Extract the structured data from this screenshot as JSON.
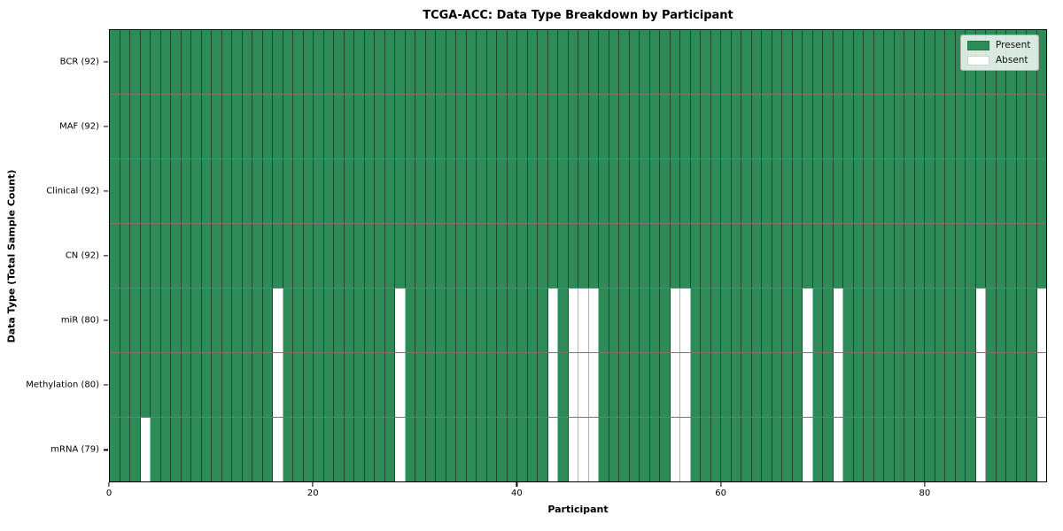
{
  "title": "TCGA-ACC: Data Type Breakdown by Participant",
  "xlabel": "Participant",
  "ylabel": "Data Type (Total Sample Count)",
  "legend": {
    "present_label": "Present",
    "absent_label": "Absent"
  },
  "colors": {
    "present": "#2e8b57",
    "absent": "#ffffff"
  },
  "chart_data": {
    "type": "heatmap",
    "title": "TCGA-ACC: Data Type Breakdown by Participant",
    "xlabel": "Participant",
    "ylabel": "Data Type (Total Sample Count)",
    "legend_entries": [
      "Present",
      "Absent"
    ],
    "legend_position": "upper right",
    "grid": true,
    "n_participants": 92,
    "x_range": [
      0,
      92
    ],
    "x_ticks": [
      0,
      20,
      40,
      60,
      80
    ],
    "value_legend": {
      "1": "Present",
      "0": "Absent"
    },
    "rows": [
      {
        "label": "BCR (92)",
        "name": "BCR",
        "present_count": 92,
        "absent_indices": []
      },
      {
        "label": "MAF (92)",
        "name": "MAF",
        "present_count": 92,
        "absent_indices": []
      },
      {
        "label": "Clinical (92)",
        "name": "Clinical",
        "present_count": 92,
        "absent_indices": []
      },
      {
        "label": "CN (92)",
        "name": "CN",
        "present_count": 92,
        "absent_indices": []
      },
      {
        "label": "miR (80)",
        "name": "miR",
        "present_count": 80,
        "absent_indices": [
          16,
          28,
          43,
          45,
          46,
          47,
          55,
          56,
          68,
          71,
          85,
          91
        ]
      },
      {
        "label": "Methylation (80)",
        "name": "Methylation",
        "present_count": 80,
        "absent_indices": [
          16,
          28,
          43,
          45,
          46,
          47,
          55,
          56,
          68,
          71,
          85,
          91
        ]
      },
      {
        "label": "mRNA (79)",
        "name": "mRNA",
        "present_count": 79,
        "absent_indices": [
          3,
          16,
          28,
          43,
          45,
          46,
          47,
          55,
          56,
          68,
          71,
          85,
          91
        ]
      }
    ]
  }
}
